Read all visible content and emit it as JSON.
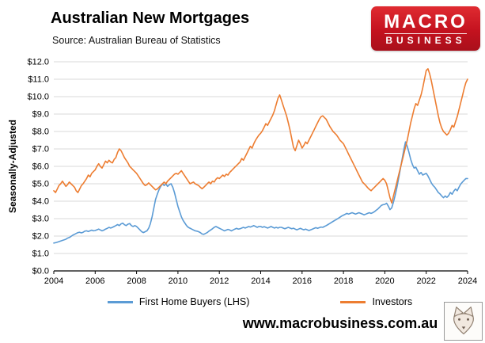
{
  "header": {
    "title": "Australian New Mortgages",
    "subtitle": "Source: Australian Bureau of Statistics"
  },
  "logo": {
    "line1": "MACRO",
    "line2": "BUSINESS"
  },
  "footer": {
    "website": "www.macrobusiness.com.au"
  },
  "chart_data": {
    "type": "line",
    "title": "Australian New Mortgages",
    "xlabel": "",
    "ylabel": "Seasonally-Adjusted",
    "grid": "horizontal",
    "legend_position": "bottom",
    "x_start": 2004,
    "x_step_months": 1,
    "x_range": [
      2004,
      2024
    ],
    "y_range": [
      0,
      12
    ],
    "x_ticks": [
      2004,
      2006,
      2008,
      2010,
      2012,
      2014,
      2016,
      2018,
      2020,
      2022,
      2024
    ],
    "y_ticks": [
      {
        "label": "$0.0",
        "value": 0
      },
      {
        "label": "$1.0",
        "value": 1
      },
      {
        "label": "$2.0",
        "value": 2
      },
      {
        "label": "$3.0",
        "value": 3
      },
      {
        "label": "$4.0",
        "value": 4
      },
      {
        "label": "$5.0",
        "value": 5
      },
      {
        "label": "$6.0",
        "value": 6
      },
      {
        "label": "$7.0",
        "value": 7
      },
      {
        "label": "$8.0",
        "value": 8
      },
      {
        "label": "$9.0",
        "value": 9
      },
      {
        "label": "$10.0",
        "value": 10
      },
      {
        "label": "$11.0",
        "value": 11
      },
      {
        "label": "$12.0",
        "value": 12
      }
    ],
    "series": [
      {
        "name": "First Home Buyers (LHS)",
        "color": "#5b9bd5",
        "values": [
          1.6,
          1.62,
          1.65,
          1.68,
          1.72,
          1.75,
          1.78,
          1.82,
          1.88,
          1.92,
          1.98,
          2.05,
          2.1,
          2.15,
          2.2,
          2.22,
          2.18,
          2.22,
          2.28,
          2.3,
          2.26,
          2.3,
          2.34,
          2.3,
          2.32,
          2.36,
          2.4,
          2.35,
          2.3,
          2.34,
          2.4,
          2.44,
          2.5,
          2.46,
          2.5,
          2.55,
          2.6,
          2.66,
          2.6,
          2.7,
          2.74,
          2.65,
          2.6,
          2.68,
          2.72,
          2.6,
          2.55,
          2.6,
          2.55,
          2.45,
          2.35,
          2.25,
          2.2,
          2.25,
          2.3,
          2.45,
          2.7,
          3.1,
          3.6,
          4.1,
          4.4,
          4.65,
          4.85,
          5.0,
          4.9,
          5.0,
          4.85,
          4.95,
          5.0,
          4.8,
          4.5,
          4.1,
          3.7,
          3.4,
          3.1,
          2.9,
          2.75,
          2.6,
          2.5,
          2.45,
          2.4,
          2.35,
          2.3,
          2.28,
          2.25,
          2.2,
          2.12,
          2.1,
          2.15,
          2.2,
          2.28,
          2.35,
          2.42,
          2.5,
          2.55,
          2.5,
          2.45,
          2.4,
          2.35,
          2.3,
          2.34,
          2.38,
          2.35,
          2.3,
          2.35,
          2.4,
          2.44,
          2.4,
          2.42,
          2.46,
          2.5,
          2.46,
          2.5,
          2.55,
          2.52,
          2.56,
          2.6,
          2.55,
          2.5,
          2.55,
          2.55,
          2.5,
          2.54,
          2.5,
          2.46,
          2.5,
          2.55,
          2.5,
          2.46,
          2.5,
          2.46,
          2.5,
          2.5,
          2.46,
          2.42,
          2.46,
          2.5,
          2.46,
          2.42,
          2.45,
          2.4,
          2.36,
          2.4,
          2.44,
          2.4,
          2.36,
          2.4,
          2.36,
          2.32,
          2.36,
          2.4,
          2.44,
          2.48,
          2.44,
          2.48,
          2.52,
          2.5,
          2.55,
          2.6,
          2.66,
          2.72,
          2.78,
          2.84,
          2.9,
          2.96,
          3.02,
          3.08,
          3.15,
          3.2,
          3.25,
          3.3,
          3.26,
          3.3,
          3.34,
          3.3,
          3.26,
          3.3,
          3.34,
          3.3,
          3.26,
          3.22,
          3.26,
          3.3,
          3.34,
          3.3,
          3.34,
          3.4,
          3.48,
          3.56,
          3.66,
          3.76,
          3.8,
          3.82,
          3.88,
          3.72,
          3.52,
          3.62,
          3.95,
          4.35,
          4.8,
          5.3,
          5.85,
          6.4,
          6.95,
          7.4,
          7.15,
          6.8,
          6.4,
          6.1,
          5.9,
          5.95,
          5.75,
          5.55,
          5.65,
          5.5,
          5.55,
          5.6,
          5.45,
          5.25,
          5.05,
          4.9,
          4.8,
          4.65,
          4.5,
          4.42,
          4.3,
          4.2,
          4.3,
          4.22,
          4.32,
          4.5,
          4.4,
          4.58,
          4.7,
          4.6,
          4.8,
          4.98,
          5.1,
          5.2,
          5.3,
          5.3
        ]
      },
      {
        "name": "Investors",
        "color": "#ed7d31",
        "values": [
          4.6,
          4.5,
          4.7,
          4.9,
          5.0,
          5.15,
          5.0,
          4.85,
          4.95,
          5.1,
          5.0,
          4.9,
          4.8,
          4.6,
          4.5,
          4.7,
          4.9,
          5.0,
          5.15,
          5.3,
          5.5,
          5.4,
          5.6,
          5.7,
          5.8,
          6.0,
          6.15,
          6.0,
          5.9,
          6.1,
          6.3,
          6.2,
          6.35,
          6.25,
          6.2,
          6.4,
          6.5,
          6.8,
          7.0,
          6.9,
          6.7,
          6.5,
          6.35,
          6.2,
          6.0,
          5.9,
          5.8,
          5.7,
          5.6,
          5.45,
          5.3,
          5.15,
          5.0,
          4.9,
          4.95,
          5.05,
          4.95,
          4.85,
          4.75,
          4.65,
          4.7,
          4.8,
          4.9,
          5.0,
          5.1,
          5.0,
          5.15,
          5.25,
          5.35,
          5.45,
          5.55,
          5.6,
          5.55,
          5.65,
          5.75,
          5.6,
          5.45,
          5.3,
          5.15,
          5.0,
          5.05,
          5.1,
          5.0,
          4.95,
          4.9,
          4.8,
          4.72,
          4.8,
          4.9,
          5.0,
          5.1,
          5.0,
          5.15,
          5.1,
          5.25,
          5.35,
          5.3,
          5.4,
          5.5,
          5.42,
          5.55,
          5.5,
          5.65,
          5.75,
          5.85,
          5.95,
          6.05,
          6.15,
          6.25,
          6.45,
          6.35,
          6.55,
          6.75,
          6.95,
          7.15,
          7.05,
          7.3,
          7.5,
          7.65,
          7.8,
          7.9,
          8.05,
          8.25,
          8.45,
          8.35,
          8.55,
          8.75,
          8.95,
          9.2,
          9.55,
          9.9,
          10.1,
          9.8,
          9.5,
          9.2,
          8.9,
          8.5,
          8.1,
          7.6,
          7.1,
          6.9,
          7.2,
          7.5,
          7.3,
          7.05,
          7.2,
          7.4,
          7.3,
          7.5,
          7.7,
          7.9,
          8.1,
          8.3,
          8.5,
          8.7,
          8.85,
          8.9,
          8.8,
          8.7,
          8.5,
          8.3,
          8.15,
          8.0,
          7.9,
          7.8,
          7.65,
          7.5,
          7.4,
          7.3,
          7.1,
          6.9,
          6.7,
          6.5,
          6.3,
          6.1,
          5.9,
          5.7,
          5.5,
          5.3,
          5.1,
          5.0,
          4.9,
          4.78,
          4.68,
          4.6,
          4.7,
          4.8,
          4.9,
          5.0,
          5.1,
          5.2,
          5.3,
          5.2,
          5.0,
          4.6,
          4.2,
          3.9,
          4.3,
          4.7,
          5.1,
          5.5,
          5.9,
          6.3,
          6.7,
          7.1,
          7.5,
          8.0,
          8.5,
          8.9,
          9.3,
          9.6,
          9.5,
          9.8,
          10.1,
          10.5,
          11.0,
          11.5,
          11.6,
          11.3,
          10.9,
          10.4,
          9.9,
          9.4,
          8.9,
          8.5,
          8.2,
          8.0,
          7.9,
          7.8,
          7.9,
          8.1,
          8.35,
          8.25,
          8.55,
          8.85,
          9.25,
          9.65,
          10.05,
          10.45,
          10.8,
          11.0
        ]
      }
    ]
  }
}
